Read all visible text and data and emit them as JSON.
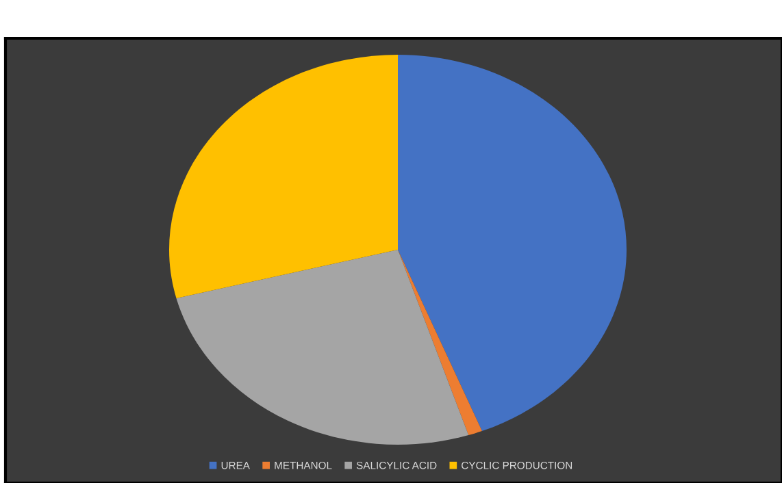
{
  "chart_data": {
    "type": "pie",
    "categories": [
      "UREA",
      "METHANOL",
      "SALICYLIC ACID",
      "CYCLIC PRODUCTION"
    ],
    "values": [
      44,
      1,
      26,
      29
    ],
    "colors": [
      "#4472c4",
      "#ed7d31",
      "#a5a5a5",
      "#ffc000"
    ],
    "legend": "bottom"
  }
}
